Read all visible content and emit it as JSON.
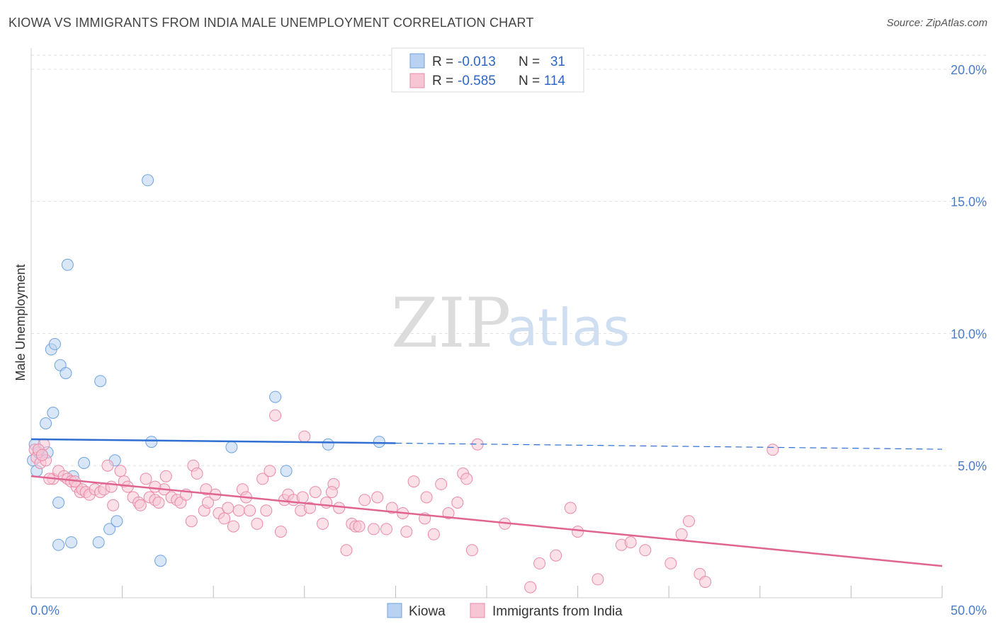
{
  "title": "KIOWA VS IMMIGRANTS FROM INDIA MALE UNEMPLOYMENT CORRELATION CHART",
  "source": "Source: ZipAtlas.com",
  "watermark": {
    "zip": "ZIP",
    "atlas": "atlas"
  },
  "chart_data": {
    "type": "scatter",
    "title": "KIOWA VS IMMIGRANTS FROM INDIA MALE UNEMPLOYMENT CORRELATION CHART",
    "xlabel": "",
    "ylabel": "Male Unemployment",
    "xlim": [
      0,
      50
    ],
    "ylim": [
      0,
      20.8
    ],
    "x_tick_labels": [
      "0.0%",
      "50.0%"
    ],
    "y_ticks": [
      5,
      10,
      15,
      20
    ],
    "y_tick_labels": [
      "5.0%",
      "10.0%",
      "15.0%",
      "20.0%"
    ],
    "grid": true,
    "legend_top": [
      {
        "r_label": "R =",
        "r": "-0.013",
        "n_label": "N =",
        "n": "31"
      },
      {
        "r_label": "R =",
        "r": "-0.585",
        "n_label": "N =",
        "n": "114"
      }
    ],
    "series": [
      {
        "name": "Kiowa",
        "color": "#6ea3e0",
        "fill": "#b9d2f1",
        "line_color": "#2f6fd1",
        "trend": {
          "x0": 0,
          "y0": 6.0,
          "x1": 20,
          "y1": 5.85,
          "dashed_to_x": 50,
          "dashed_to_y": 5.62
        },
        "points": [
          [
            0.1,
            5.2
          ],
          [
            0.2,
            5.8
          ],
          [
            0.3,
            4.8
          ],
          [
            0.4,
            5.5
          ],
          [
            0.6,
            5.4
          ],
          [
            0.8,
            6.6
          ],
          [
            0.9,
            5.5
          ],
          [
            1.1,
            9.4
          ],
          [
            1.2,
            7.0
          ],
          [
            1.3,
            9.6
          ],
          [
            1.5,
            3.6
          ],
          [
            1.5,
            2.0
          ],
          [
            1.6,
            8.8
          ],
          [
            1.9,
            8.5
          ],
          [
            2.2,
            2.1
          ],
          [
            2.3,
            4.6
          ],
          [
            2.9,
            5.1
          ],
          [
            3.7,
            2.1
          ],
          [
            3.8,
            8.2
          ],
          [
            4.3,
            2.6
          ],
          [
            4.6,
            5.2
          ],
          [
            4.7,
            2.9
          ],
          [
            6.4,
            15.8
          ],
          [
            6.6,
            5.9
          ],
          [
            7.1,
            1.4
          ],
          [
            11.0,
            5.7
          ],
          [
            13.4,
            7.6
          ],
          [
            14.0,
            4.8
          ],
          [
            16.3,
            5.8
          ],
          [
            19.1,
            5.9
          ],
          [
            2.0,
            12.6
          ]
        ]
      },
      {
        "name": "Immigrants from India",
        "color": "#e98aa8",
        "fill": "#f7c6d5",
        "line_color": "#e0648f",
        "trend": {
          "x0": 0,
          "y0": 4.6,
          "x1": 50,
          "y1": 1.2
        },
        "points": [
          [
            0.2,
            5.6
          ],
          [
            0.3,
            5.3
          ],
          [
            0.5,
            5.1
          ],
          [
            0.7,
            5.8
          ],
          [
            0.8,
            5.2
          ],
          [
            1.2,
            4.5
          ],
          [
            1.5,
            4.8
          ],
          [
            1.8,
            4.6
          ],
          [
            2.0,
            4.5
          ],
          [
            2.2,
            4.4
          ],
          [
            2.5,
            4.2
          ],
          [
            2.7,
            4.0
          ],
          [
            2.8,
            4.1
          ],
          [
            3.0,
            4.0
          ],
          [
            3.2,
            3.9
          ],
          [
            3.5,
            4.1
          ],
          [
            3.8,
            4.0
          ],
          [
            4.0,
            4.1
          ],
          [
            4.2,
            5.0
          ],
          [
            4.4,
            4.2
          ],
          [
            4.5,
            3.5
          ],
          [
            4.9,
            4.8
          ],
          [
            5.1,
            4.4
          ],
          [
            5.3,
            4.2
          ],
          [
            5.6,
            3.8
          ],
          [
            5.9,
            3.6
          ],
          [
            6.0,
            3.5
          ],
          [
            6.3,
            4.5
          ],
          [
            6.5,
            3.8
          ],
          [
            6.8,
            3.7
          ],
          [
            7.0,
            3.6
          ],
          [
            7.3,
            4.1
          ],
          [
            7.4,
            4.6
          ],
          [
            7.7,
            3.8
          ],
          [
            8.0,
            3.7
          ],
          [
            8.2,
            3.6
          ],
          [
            8.5,
            3.9
          ],
          [
            8.8,
            2.9
          ],
          [
            8.9,
            5.0
          ],
          [
            9.1,
            4.7
          ],
          [
            9.5,
            3.3
          ],
          [
            9.7,
            3.6
          ],
          [
            10.1,
            3.9
          ],
          [
            10.3,
            3.2
          ],
          [
            10.6,
            3.0
          ],
          [
            10.8,
            3.4
          ],
          [
            11.1,
            2.7
          ],
          [
            11.4,
            3.3
          ],
          [
            11.6,
            4.1
          ],
          [
            11.8,
            3.8
          ],
          [
            12.0,
            3.3
          ],
          [
            12.4,
            2.8
          ],
          [
            12.7,
            4.5
          ],
          [
            12.9,
            3.3
          ],
          [
            13.1,
            4.8
          ],
          [
            13.4,
            6.9
          ],
          [
            13.7,
            2.5
          ],
          [
            13.9,
            3.7
          ],
          [
            14.1,
            3.9
          ],
          [
            14.4,
            3.7
          ],
          [
            14.8,
            3.3
          ],
          [
            15.0,
            6.1
          ],
          [
            15.3,
            3.4
          ],
          [
            15.6,
            4.0
          ],
          [
            16.0,
            2.8
          ],
          [
            16.2,
            3.6
          ],
          [
            16.6,
            4.3
          ],
          [
            16.9,
            3.4
          ],
          [
            17.3,
            1.8
          ],
          [
            17.6,
            2.8
          ],
          [
            17.8,
            2.7
          ],
          [
            18.0,
            2.7
          ],
          [
            18.3,
            3.7
          ],
          [
            18.8,
            2.6
          ],
          [
            19.0,
            3.8
          ],
          [
            19.5,
            2.6
          ],
          [
            19.8,
            3.4
          ],
          [
            20.4,
            3.2
          ],
          [
            20.6,
            2.5
          ],
          [
            21.0,
            4.4
          ],
          [
            21.6,
            3.0
          ],
          [
            21.7,
            3.8
          ],
          [
            22.1,
            2.4
          ],
          [
            22.9,
            3.2
          ],
          [
            23.4,
            3.6
          ],
          [
            23.7,
            4.7
          ],
          [
            23.9,
            4.5
          ],
          [
            24.2,
            1.8
          ],
          [
            24.5,
            5.8
          ],
          [
            26.0,
            2.8
          ],
          [
            27.4,
            0.4
          ],
          [
            27.9,
            1.3
          ],
          [
            28.8,
            1.6
          ],
          [
            29.6,
            3.4
          ],
          [
            30.0,
            2.5
          ],
          [
            31.1,
            0.7
          ],
          [
            32.4,
            2.0
          ],
          [
            33.7,
            1.8
          ],
          [
            35.1,
            1.3
          ],
          [
            35.7,
            2.4
          ],
          [
            36.7,
            0.9
          ],
          [
            37.0,
            0.6
          ],
          [
            40.7,
            5.6
          ],
          [
            32.9,
            2.1
          ],
          [
            36.1,
            2.9
          ],
          [
            1.0,
            4.5
          ],
          [
            2.4,
            4.4
          ],
          [
            6.8,
            4.2
          ],
          [
            9.6,
            4.1
          ],
          [
            14.9,
            3.8
          ],
          [
            16.5,
            4.0
          ],
          [
            22.5,
            4.3
          ],
          [
            0.4,
            5.6
          ],
          [
            0.6,
            5.4
          ]
        ]
      }
    ]
  },
  "bottom_legend": [
    {
      "label": "Kiowa"
    },
    {
      "label": "Immigrants from India"
    }
  ]
}
